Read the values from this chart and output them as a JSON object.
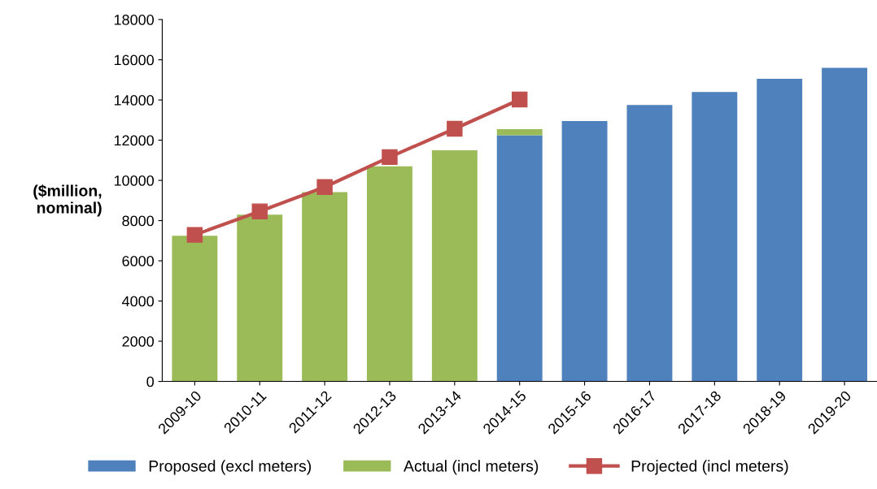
{
  "chart_data": {
    "type": "bar",
    "stacked": true,
    "ylabel": "($million,\nnominal)",
    "categories": [
      "2009-10",
      "2010-11",
      "2011-12",
      "2012-13",
      "2013-14",
      "2014-15",
      "2015-16",
      "2016-17",
      "2017-18",
      "2018-19",
      "2019-20"
    ],
    "series": [
      {
        "name": "Proposed (excl meters)",
        "color": "#4f81bd",
        "values": [
          null,
          null,
          null,
          null,
          null,
          12250,
          12950,
          13750,
          14400,
          15050,
          15600
        ]
      },
      {
        "name": "Actual (incl meters)",
        "color": "#9bbb59",
        "values": [
          7250,
          8300,
          9420,
          10700,
          11500,
          300,
          null,
          null,
          null,
          null,
          null
        ]
      },
      {
        "name": "Projected (incl meters)",
        "color": "#c0504d",
        "type": "line",
        "values": [
          7290,
          8460,
          9670,
          11160,
          12570,
          14020,
          null,
          null,
          null,
          null,
          null
        ]
      }
    ],
    "ylim": [
      0,
      18000
    ],
    "yticks": [
      0,
      2000,
      4000,
      6000,
      8000,
      10000,
      12000,
      14000,
      16000,
      18000
    ],
    "grid": false,
    "legend": "bottom",
    "marker": "square",
    "line_style": "solid"
  }
}
